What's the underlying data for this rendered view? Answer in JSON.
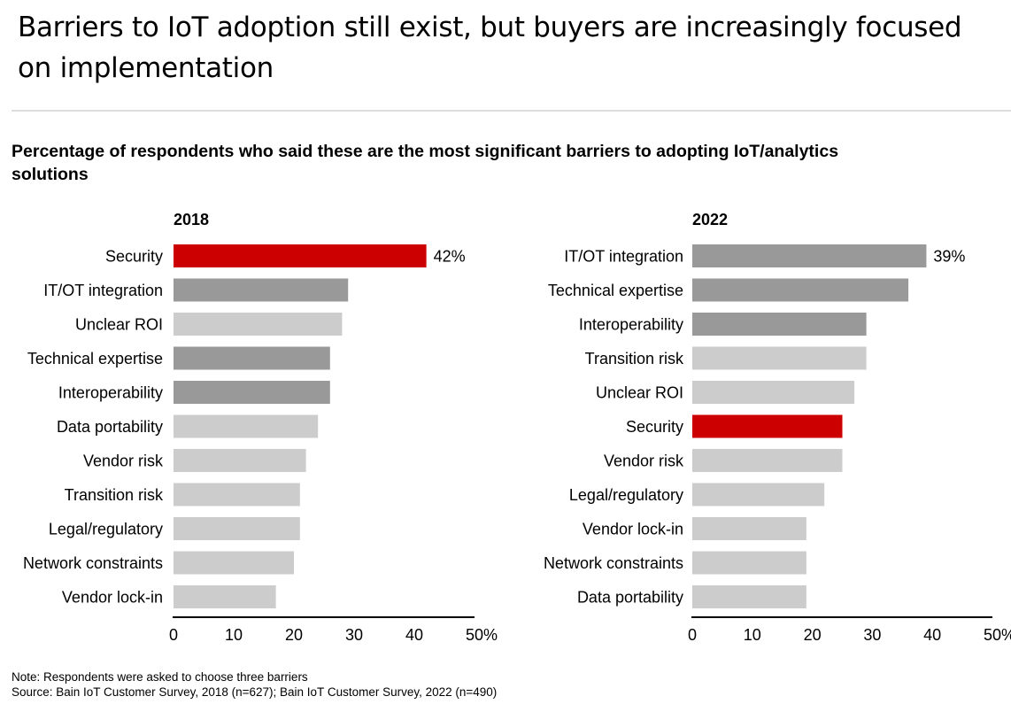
{
  "header": {
    "title": "Barriers to IoT adoption still exist, but buyers are increasingly focused on implementation",
    "subtitle": "Percentage of respondents who said these are the most significant barriers to adopting IoT/analytics solutions"
  },
  "footer": {
    "note": "Note: Respondents were asked to choose three barriers",
    "source": "Source: Bain IoT Customer Survey, 2018 (n=627); Bain IoT Customer Survey, 2022 (n=490)"
  },
  "colors": {
    "highlight": "#cc0000",
    "dark": "#999999",
    "light": "#cccccc",
    "axis": "#000000"
  },
  "chart_data": [
    {
      "type": "bar",
      "orientation": "horizontal",
      "title": "2018",
      "xlabel": "",
      "ylabel": "",
      "xlim": [
        0,
        50
      ],
      "ticks": [
        "0",
        "10",
        "20",
        "30",
        "40",
        "50%"
      ],
      "tick_values": [
        0,
        10,
        20,
        30,
        40,
        50
      ],
      "grid": false,
      "categories": [
        "Security",
        "IT/OT integration",
        "Unclear ROI",
        "Technical expertise",
        "Interoperability",
        "Data portability",
        "Vendor risk",
        "Transition risk",
        "Legal/regulatory",
        "Network constraints",
        "Vendor lock-in"
      ],
      "values": [
        42,
        29,
        28,
        26,
        26,
        24,
        22,
        21,
        21,
        20,
        17
      ],
      "shades": [
        "highlight",
        "dark",
        "light",
        "dark",
        "dark",
        "light",
        "light",
        "light",
        "light",
        "light",
        "light"
      ],
      "data_labels": [
        "42%",
        "",
        "",
        "",
        "",
        "",
        "",
        "",
        "",
        "",
        ""
      ]
    },
    {
      "type": "bar",
      "orientation": "horizontal",
      "title": "2022",
      "xlabel": "",
      "ylabel": "",
      "xlim": [
        0,
        50
      ],
      "ticks": [
        "0",
        "10",
        "20",
        "30",
        "40",
        "50%"
      ],
      "tick_values": [
        0,
        10,
        20,
        30,
        40,
        50
      ],
      "grid": false,
      "categories": [
        "IT/OT integration",
        "Technical expertise",
        "Interoperability",
        "Transition risk",
        "Unclear ROI",
        "Security",
        "Vendor risk",
        "Legal/regulatory",
        "Vendor lock-in",
        "Network constraints",
        "Data portability"
      ],
      "values": [
        39,
        36,
        29,
        29,
        27,
        25,
        25,
        22,
        19,
        19,
        19
      ],
      "shades": [
        "dark",
        "dark",
        "dark",
        "light",
        "light",
        "highlight",
        "light",
        "light",
        "light",
        "light",
        "light"
      ],
      "data_labels": [
        "39%",
        "",
        "",
        "",
        "",
        "",
        "",
        "",
        "",
        "",
        ""
      ]
    }
  ]
}
